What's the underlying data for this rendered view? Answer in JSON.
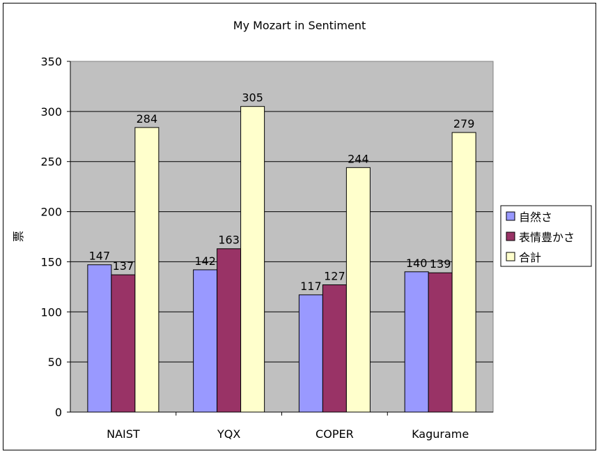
{
  "chart_data": {
    "type": "bar",
    "title": "My Mozart in Sentiment",
    "xlabel": "",
    "ylabel": "票",
    "categories": [
      "NAIST",
      "YQX",
      "COPER",
      "Kagurame"
    ],
    "series": [
      {
        "name": "自然さ",
        "values": [
          147,
          142,
          117,
          140
        ],
        "color": "#9999ff"
      },
      {
        "name": "表情豊かさ",
        "values": [
          137,
          163,
          127,
          139
        ],
        "color": "#993366"
      },
      {
        "name": "合計",
        "values": [
          284,
          305,
          244,
          279
        ],
        "color": "#ffffcc"
      }
    ],
    "ylim": [
      0,
      350
    ],
    "yticks": [
      0,
      50,
      100,
      150,
      200,
      250,
      300,
      350
    ],
    "grid": true,
    "legend_position": "right",
    "plot_background": "#c0c0c0"
  }
}
